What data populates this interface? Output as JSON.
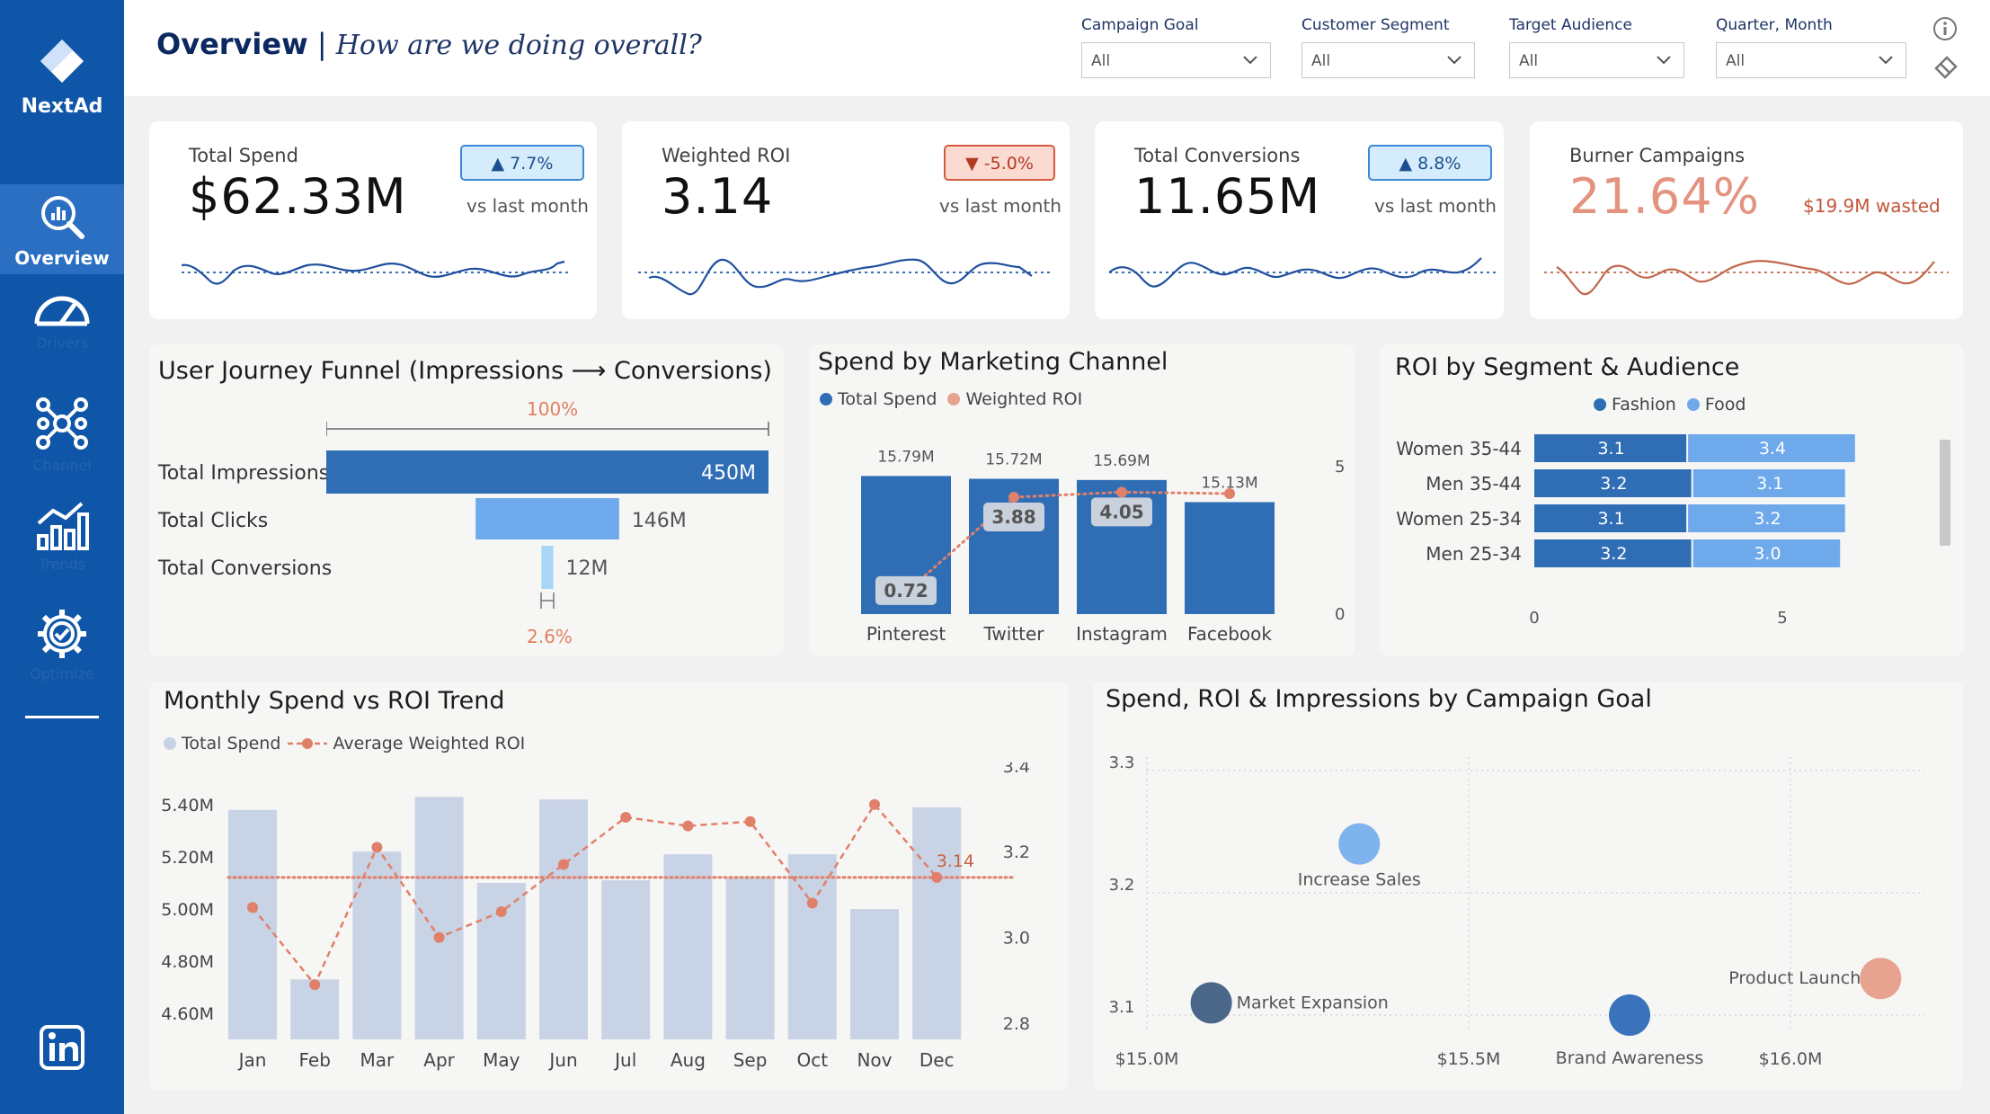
{
  "sidebar": {
    "brand": "NextAd",
    "items": [
      {
        "label": "Overview",
        "icon": "analytics-magnifier-icon"
      },
      {
        "label": "Drivers",
        "icon": "speedometer-icon"
      },
      {
        "label": "Channel",
        "icon": "network-icon"
      },
      {
        "label": "Trends",
        "icon": "bar-chart-up-icon"
      },
      {
        "label": "Optimize",
        "icon": "gear-check-icon"
      }
    ],
    "social_icon": "linkedin-icon"
  },
  "header": {
    "title_bold": "Overview",
    "separator": " | ",
    "title_italic": "How are we doing overall?"
  },
  "filters": [
    {
      "label": "Campaign Goal",
      "value": "All"
    },
    {
      "label": "Customer Segment",
      "value": "All"
    },
    {
      "label": "Target Audience",
      "value": "All"
    },
    {
      "label": "Quarter, Month",
      "value": "All"
    }
  ],
  "kpis": [
    {
      "label": "Total Spend",
      "value": "$62.33M",
      "delta": "▲ 7.7%",
      "direction": "up",
      "compare": "vs last month"
    },
    {
      "label": "Weighted ROI",
      "value": "3.14",
      "delta": "▼ -5.0%",
      "direction": "down",
      "compare": "vs last month"
    },
    {
      "label": "Total Conversions",
      "value": "11.65M",
      "delta": "▲ 8.8%",
      "direction": "up",
      "compare": "vs last month"
    },
    {
      "label": "Burner Campaigns",
      "value": "21.64%",
      "note": "$19.9M wasted"
    }
  ],
  "colors": {
    "primary": "#0f56a8",
    "bar_dark": "#2f6eb5",
    "bar_light": "#6ea9ec",
    "bar_pale": "#a8d6f4",
    "accent": "#e0806a",
    "trend_bar": "#c9d3e6",
    "burner": "#e3937f"
  },
  "funnel": {
    "title": "User Journey Funnel (Impressions ⟶ Conversions)",
    "top_pct": "100%",
    "bottom_pct": "2.6%",
    "stages": [
      {
        "label": "Total Impressions",
        "value_label": "450M",
        "value": 450
      },
      {
        "label": "Total Clicks",
        "value_label": "146M",
        "value": 146
      },
      {
        "label": "Total Conversions",
        "value_label": "12M",
        "value": 12
      }
    ]
  },
  "channel": {
    "title": "Spend by Marketing Channel",
    "legend": [
      "Total Spend",
      "Weighted ROI"
    ],
    "right_axis_ticks": [
      "5",
      "0"
    ],
    "chart_data": {
      "type": "bar",
      "categories": [
        "Pinterest",
        "Twitter",
        "Instagram",
        "Facebook"
      ],
      "series": [
        {
          "name": "Total Spend",
          "values": [
            15.79,
            15.72,
            15.69,
            15.13
          ],
          "labels": [
            "15.79M",
            "15.72M",
            "15.69M",
            "15.13M"
          ]
        },
        {
          "name": "Weighted ROI",
          "values": [
            0.72,
            3.88,
            4.05,
            4.0
          ],
          "labels": [
            "0.72",
            "3.88",
            "4.05",
            ""
          ]
        }
      ],
      "ylim_roi": [
        0,
        5
      ]
    }
  },
  "segment": {
    "title": "ROI by Segment & Audience",
    "legend": [
      "Fashion",
      "Food"
    ],
    "x_ticks": [
      "0",
      "5"
    ],
    "chart_data": {
      "type": "bar",
      "orientation": "horizontal-stacked",
      "categories": [
        "Women 35-44",
        "Men 35-44",
        "Women 25-34",
        "Men 25-34"
      ],
      "series": [
        {
          "name": "Fashion",
          "values": [
            3.1,
            3.2,
            3.1,
            3.2
          ],
          "labels": [
            "3.1",
            "3.2",
            "3.1",
            "3.2"
          ]
        },
        {
          "name": "Food",
          "values": [
            3.4,
            3.1,
            3.2,
            3.0
          ],
          "labels": [
            "3.4",
            "3.1",
            "3.2",
            "3.0"
          ]
        }
      ],
      "xlim": [
        0,
        7
      ]
    }
  },
  "trend": {
    "title": "Monthly Spend vs ROI Trend",
    "legend": [
      "Total Spend",
      "Average Weighted ROI"
    ],
    "left_ticks": [
      "5.40M",
      "5.20M",
      "5.00M",
      "4.80M",
      "4.60M"
    ],
    "right_ticks": [
      "3.4",
      "3.2",
      "3.0",
      "2.8"
    ],
    "avg_label": "3.14",
    "chart_data": {
      "type": "bar",
      "categories": [
        "Jan",
        "Feb",
        "Mar",
        "Apr",
        "May",
        "Jun",
        "Jul",
        "Aug",
        "Sep",
        "Oct",
        "Nov",
        "Dec"
      ],
      "series": [
        {
          "name": "Total Spend",
          "values": [
            5.38,
            4.73,
            5.22,
            5.43,
            5.1,
            5.42,
            5.11,
            5.21,
            5.12,
            5.21,
            5.0,
            5.39
          ]
        },
        {
          "name": "Average Weighted ROI",
          "values": [
            3.07,
            2.89,
            3.21,
            3.0,
            3.06,
            3.17,
            3.28,
            3.26,
            3.27,
            3.08,
            3.31,
            3.14
          ]
        }
      ],
      "ylim_left": [
        4.5,
        5.5
      ],
      "ylim_right": [
        2.8,
        3.4
      ],
      "average_roi": 3.14
    }
  },
  "scatter": {
    "title": "Spend, ROI & Impressions by Campaign Goal",
    "x_ticks": [
      "$15.0M",
      "$15.5M",
      "$16.0M"
    ],
    "y_ticks": [
      "3.3",
      "3.2",
      "3.1"
    ],
    "chart_data": {
      "type": "scatter",
      "xlim": [
        15.0,
        16.2
      ],
      "ylim": [
        3.03,
        3.3
      ],
      "points": [
        {
          "label": "Increase Sales",
          "x": 15.33,
          "y": 3.24,
          "color": "#7fb3ee"
        },
        {
          "label": "Market Expansion",
          "x": 15.1,
          "y": 3.11,
          "color": "#4a6688"
        },
        {
          "label": "Brand Awareness",
          "x": 15.75,
          "y": 3.1,
          "color": "#3a72bc"
        },
        {
          "label": "Product Launch",
          "x": 16.14,
          "y": 3.13,
          "color": "#e8a390"
        }
      ]
    }
  }
}
